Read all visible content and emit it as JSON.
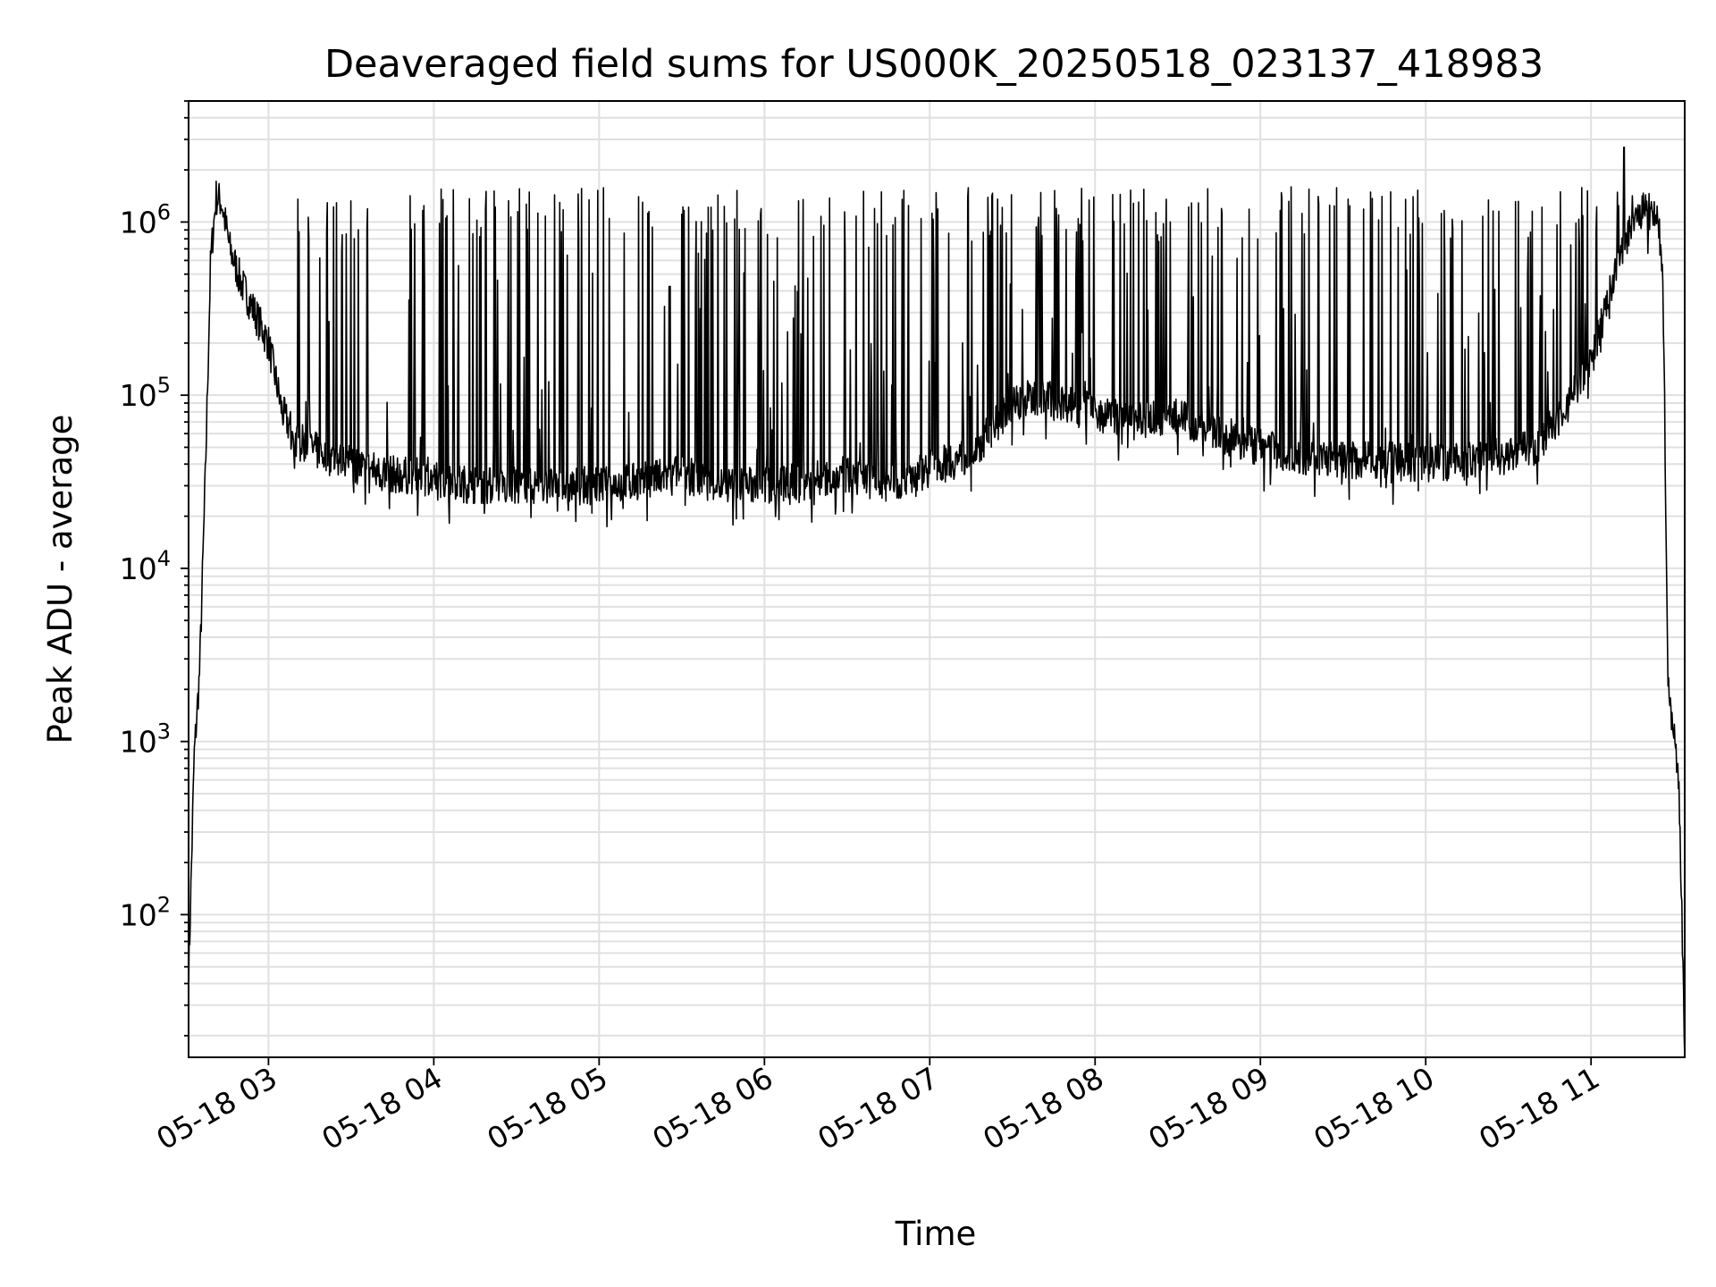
{
  "chart_data": {
    "type": "line",
    "title": "Deaveraged field sums for US000K_20250518_023137_418983",
    "xlabel": "Time",
    "ylabel": "Peak ADU - average",
    "yscale": "log",
    "xlim": [
      "05-18 02:31",
      "05-18 11:34"
    ],
    "ylim": [
      15,
      5000000
    ],
    "grid": true,
    "line_color": "#000000",
    "grid_color": "#e0e0e0",
    "x_ticks": [
      "05-18 03",
      "05-18 04",
      "05-18 05",
      "05-18 06",
      "05-18 07",
      "05-18 08",
      "05-18 09",
      "05-18 10",
      "05-18 11"
    ],
    "y_ticks": [
      {
        "base": "10",
        "exp": "2",
        "value": 100
      },
      {
        "base": "10",
        "exp": "3",
        "value": 1000
      },
      {
        "base": "10",
        "exp": "4",
        "value": 10000
      },
      {
        "base": "10",
        "exp": "5",
        "value": 100000
      },
      {
        "base": "10",
        "exp": "6",
        "value": 1000000
      }
    ],
    "series": [
      {
        "baseline": {
          "x": [
            "02:31",
            "02:33",
            "02:35",
            "02:37",
            "02:39",
            "02:41",
            "02:43",
            "02:46",
            "02:50",
            "02:55",
            "03:00",
            "03:05",
            "03:10",
            "03:15",
            "03:20",
            "03:30",
            "03:45",
            "04:00",
            "04:15",
            "04:30",
            "04:45",
            "05:00",
            "05:15",
            "05:30",
            "05:45",
            "06:00",
            "06:15",
            "06:30",
            "06:45",
            "07:00",
            "07:15",
            "07:30",
            "07:40",
            "07:45",
            "08:00",
            "08:15",
            "08:30",
            "08:45",
            "09:00",
            "09:15",
            "09:30",
            "09:45",
            "10:00",
            "10:15",
            "10:30",
            "10:40",
            "10:50",
            "11:00",
            "11:05",
            "11:10",
            "11:15",
            "11:20",
            "11:24",
            "11:26",
            "11:28",
            "11:30",
            "11:32",
            "11:33",
            "11:34"
          ],
          "y": [
            40,
            800,
            2500,
            30000,
            600000,
            1400000,
            1300000,
            700000,
            450000,
            300000,
            200000,
            80000,
            55000,
            50000,
            45000,
            40000,
            35000,
            33000,
            30000,
            30000,
            30000,
            30000,
            32000,
            35000,
            30000,
            30000,
            32000,
            35000,
            30000,
            38000,
            45000,
            90000,
            100000,
            95000,
            80000,
            70000,
            75000,
            60000,
            50000,
            45000,
            42000,
            42000,
            40000,
            42000,
            45000,
            50000,
            80000,
            150000,
            300000,
            600000,
            1000000,
            1200000,
            1000000,
            600000,
            2000,
            1200,
            500,
            100,
            15
          ]
        },
        "spike_peak_range": [
          800000,
          1600000
        ],
        "max_value": 2700000
      }
    ]
  }
}
